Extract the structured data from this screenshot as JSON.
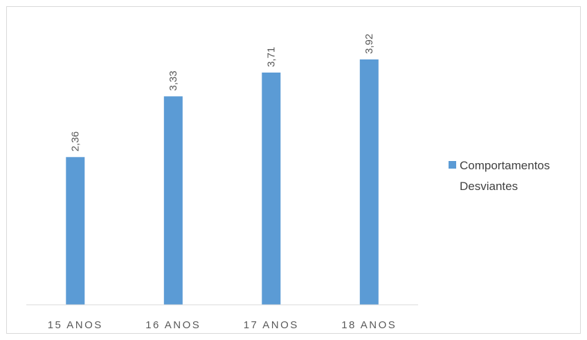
{
  "chart_data": {
    "type": "bar",
    "categories": [
      "15 ANOS",
      "16 ANOS",
      "17 ANOS",
      "18 ANOS"
    ],
    "series": [
      {
        "name": "Comportamentos Desviantes",
        "values": [
          2.36,
          3.33,
          3.71,
          3.92
        ],
        "value_labels": [
          "2,36",
          "3,33",
          "3,71",
          "3,92"
        ],
        "color": "#5b9bd5"
      }
    ],
    "legend_lines": [
      "Comportamentos",
      "Desviantes"
    ],
    "legend_position": "right",
    "grid": false,
    "ylim": [
      0,
      4.5
    ],
    "title": "",
    "xlabel": "",
    "ylabel": ""
  }
}
